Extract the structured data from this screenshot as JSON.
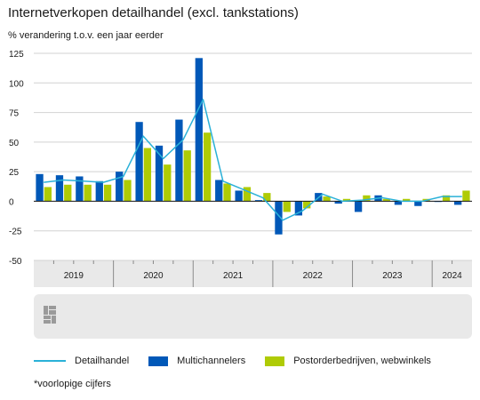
{
  "header": {
    "title": "Internetverkopen detailhandel (excl. tankstations)",
    "subtitle": "% verandering t.o.v. een jaar eerder"
  },
  "footnote": "*voorlopige cijfers",
  "colors": {
    "multichannelers": "#0058b8",
    "postorder": "#afcb05",
    "detailhandel": "#2ab1d8",
    "grid": "#d2d2d2",
    "axis_band": "#e9e9e9",
    "logo_panel": "#e9e9e9"
  },
  "chart_data": {
    "type": "bar",
    "xlabel": "",
    "ylabel": "",
    "ylim": [
      -50,
      125
    ],
    "yticks": [
      -50,
      -25,
      0,
      25,
      50,
      75,
      100,
      125
    ],
    "grid": true,
    "legend_placement": "bottom",
    "years": [
      "2019",
      "2020",
      "2021",
      "2022",
      "2023",
      "2024"
    ],
    "quarters_per_year": [
      4,
      4,
      4,
      4,
      4,
      2
    ],
    "series": [
      {
        "name": "Multichannelers",
        "type": "bar",
        "values": [
          23,
          22,
          21,
          17,
          25,
          67,
          47,
          69,
          121,
          18,
          9,
          1,
          -28,
          -12,
          7,
          -2,
          -9,
          5,
          -3,
          -4,
          0,
          -3
        ]
      },
      {
        "name": "Postorderbedrijven, webwinkels",
        "type": "bar",
        "values": [
          12,
          14,
          14,
          14,
          18,
          45,
          31,
          43,
          58,
          15,
          12,
          7,
          -9,
          -6,
          4,
          2,
          5,
          2,
          2,
          2,
          5,
          9
        ]
      },
      {
        "name": "Detailhandel",
        "type": "line",
        "values": [
          16,
          18,
          17,
          16,
          21,
          55,
          36,
          52,
          86,
          17,
          10,
          3,
          -16,
          -8,
          6,
          0,
          1,
          3,
          0,
          0,
          4,
          4
        ]
      }
    ]
  }
}
